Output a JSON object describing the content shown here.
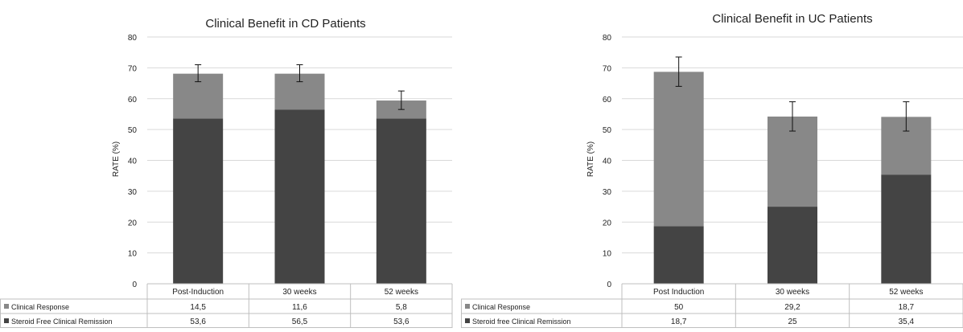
{
  "colors": {
    "remission": "#444444",
    "response": "#888888",
    "grid": "#d9d9d9",
    "text": "#222222"
  },
  "chart_data": [
    {
      "type": "bar",
      "stacked": true,
      "title": "Clinical Benefit  in CD Patients",
      "ylabel": "RATE (%)",
      "ylim": [
        0,
        80
      ],
      "yticks": [
        0,
        10,
        20,
        30,
        40,
        50,
        60,
        70,
        80
      ],
      "grid": true,
      "categories": [
        "Post-Induction",
        "30 weeks",
        "52 weeks"
      ],
      "series": [
        {
          "name": "Steroid Free Clinical  Remission",
          "values": [
            53.6,
            56.5,
            53.6
          ],
          "labels": [
            "53,6",
            "56,5",
            "53,6"
          ]
        },
        {
          "name": "Clinical Response",
          "values": [
            14.5,
            11.6,
            5.8
          ],
          "labels": [
            "14,5",
            "11,6",
            "5,8"
          ]
        }
      ],
      "error_bars": [
        [
          65.5,
          71
        ],
        [
          65.5,
          71
        ],
        [
          56.5,
          62.5
        ]
      ]
    },
    {
      "type": "bar",
      "stacked": true,
      "title": "Clinical Benefit in UC Patients",
      "ylabel": "RATE (%)",
      "ylim": [
        0,
        80
      ],
      "yticks": [
        0,
        10,
        20,
        30,
        40,
        50,
        60,
        70,
        80
      ],
      "grid": true,
      "categories": [
        "Post Induction",
        "30 weeks",
        "52 weeks"
      ],
      "series": [
        {
          "name": "Steroid free Clinical  Remission",
          "values": [
            18.7,
            25,
            35.4
          ],
          "labels": [
            "18,7",
            "25",
            "35,4"
          ]
        },
        {
          "name": "Clinical Response",
          "values": [
            50,
            29.2,
            18.7
          ],
          "labels": [
            "50",
            "29,2",
            "18,7"
          ]
        }
      ],
      "error_bars": [
        [
          64,
          73.5
        ],
        [
          49.5,
          59
        ],
        [
          49.5,
          59
        ]
      ]
    }
  ]
}
